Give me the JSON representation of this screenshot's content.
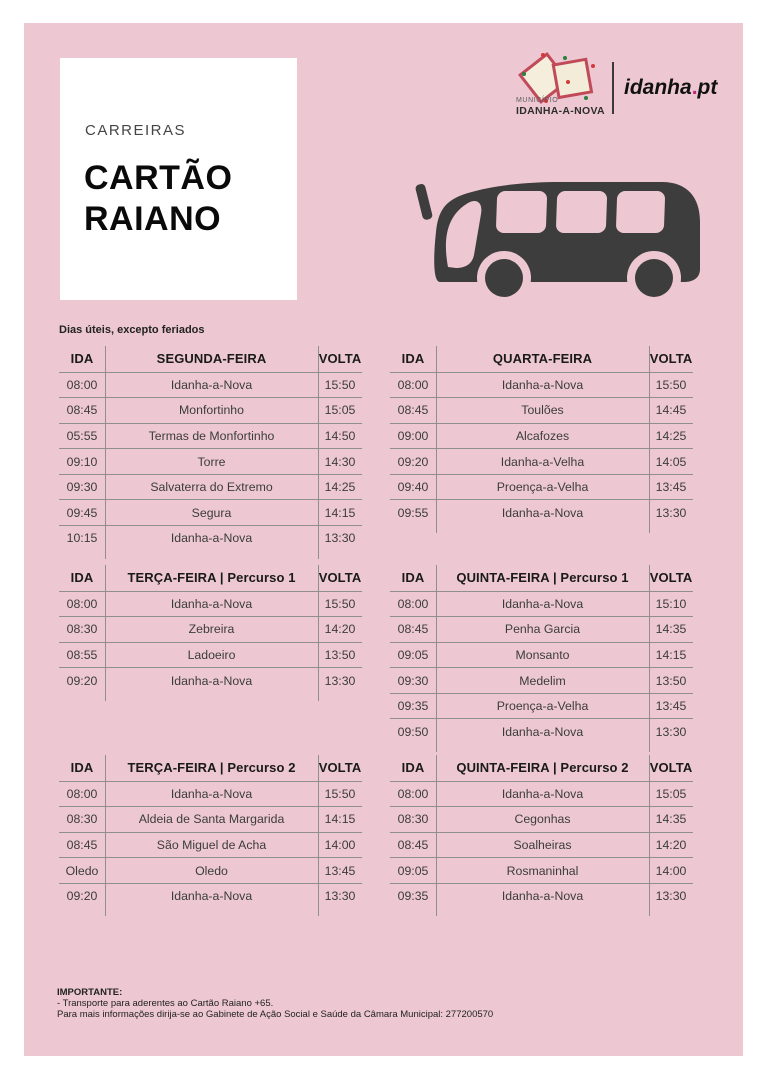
{
  "page": {
    "background_color": "#ffffff",
    "panel_color": "#edc8d3",
    "accent_charcoal": "#3d3d3d"
  },
  "header": {
    "kicker": "CARREIRAS",
    "title_line1": "CARTÃO",
    "title_line2": "RAIANO",
    "logo": {
      "municipality_small": "MUNICÍPIO",
      "municipality_name": "IDANHA-A-NOVA",
      "brand": "idanha",
      "brand_dot": ".",
      "brand_tld": "pt",
      "dot_color": "#c2267d"
    }
  },
  "note": "Dias úteis, excepto feriados",
  "columns": {
    "ida": "IDA",
    "volta": "VOLTA"
  },
  "tables": [
    {
      "title": "SEGUNDA-FEIRA",
      "rows": [
        {
          "ida": "08:00",
          "place": "Idanha-a-Nova",
          "volta": "15:50"
        },
        {
          "ida": "08:45",
          "place": "Monfortinho",
          "volta": "15:05"
        },
        {
          "ida": "05:55",
          "place": "Termas de Monfortinho",
          "volta": "14:50"
        },
        {
          "ida": "09:10",
          "place": "Torre",
          "volta": "14:30"
        },
        {
          "ida": "09:30",
          "place": "Salvaterra do Extremo",
          "volta": "14:25"
        },
        {
          "ida": "09:45",
          "place": "Segura",
          "volta": "14:15"
        },
        {
          "ida": "10:15",
          "place": "Idanha-a-Nova",
          "volta": "13:30"
        }
      ]
    },
    {
      "title": "QUARTA-FEIRA",
      "rows": [
        {
          "ida": "08:00",
          "place": "Idanha-a-Nova",
          "volta": "15:50"
        },
        {
          "ida": "08:45",
          "place": "Toulões",
          "volta": "14:45"
        },
        {
          "ida": "09:00",
          "place": "Alcafozes",
          "volta": "14:25"
        },
        {
          "ida": "09:20",
          "place": "Idanha-a-Velha",
          "volta": "14:05"
        },
        {
          "ida": "09:40",
          "place": "Proença-a-Velha",
          "volta": "13:45"
        },
        {
          "ida": "09:55",
          "place": "Idanha-a-Nova",
          "volta": "13:30"
        }
      ]
    },
    {
      "title": "TERÇA-FEIRA | Percurso 1",
      "rows": [
        {
          "ida": "08:00",
          "place": "Idanha-a-Nova",
          "volta": "15:50"
        },
        {
          "ida": "08:30",
          "place": "Zebreira",
          "volta": "14:20"
        },
        {
          "ida": "08:55",
          "place": "Ladoeiro",
          "volta": "13:50"
        },
        {
          "ida": "09:20",
          "place": "Idanha-a-Nova",
          "volta": "13:30"
        }
      ]
    },
    {
      "title": "QUINTA-FEIRA | Percurso 1",
      "rows": [
        {
          "ida": "08:00",
          "place": "Idanha-a-Nova",
          "volta": "15:10"
        },
        {
          "ida": "08:45",
          "place": "Penha Garcia",
          "volta": "14:35"
        },
        {
          "ida": "09:05",
          "place": "Monsanto",
          "volta": "14:15"
        },
        {
          "ida": "09:30",
          "place": "Medelim",
          "volta": "13:50"
        },
        {
          "ida": "09:35",
          "place": "Proença-a-Velha",
          "volta": "13:45"
        },
        {
          "ida": "09:50",
          "place": "Idanha-a-Nova",
          "volta": "13:30"
        }
      ]
    },
    {
      "title": "TERÇA-FEIRA |  Percurso 2",
      "rows": [
        {
          "ida": "08:00",
          "place": "Idanha-a-Nova",
          "volta": "15:50"
        },
        {
          "ida": "08:30",
          "place": "Aldeia de Santa Margarida",
          "volta": "14:15"
        },
        {
          "ida": "08:45",
          "place": "São Miguel de Acha",
          "volta": "14:00"
        },
        {
          "ida": "Oledo",
          "place": "Oledo",
          "volta": "13:45"
        },
        {
          "ida": "09:20",
          "place": "Idanha-a-Nova",
          "volta": "13:30"
        }
      ]
    },
    {
      "title": "QUINTA-FEIRA | Percurso 2",
      "rows": [
        {
          "ida": "08:00",
          "place": "Idanha-a-Nova",
          "volta": "15:05"
        },
        {
          "ida": "08:30",
          "place": "Cegonhas",
          "volta": "14:35"
        },
        {
          "ida": "08:45",
          "place": "Soalheiras",
          "volta": "14:20"
        },
        {
          "ida": "09:05",
          "place": "Rosmaninhal",
          "volta": "14:00"
        },
        {
          "ida": "09:35",
          "place": "Idanha-a-Nova",
          "volta": "13:30"
        }
      ]
    }
  ],
  "footer": {
    "title": "IMPORTANTE:",
    "line1": "- Transporte para aderentes ao Cartão Raiano +65.",
    "line2": "Para mais informações dirija-se ao Gabinete de Ação Social e Saúde da Câmara Municipal: 277200570"
  }
}
